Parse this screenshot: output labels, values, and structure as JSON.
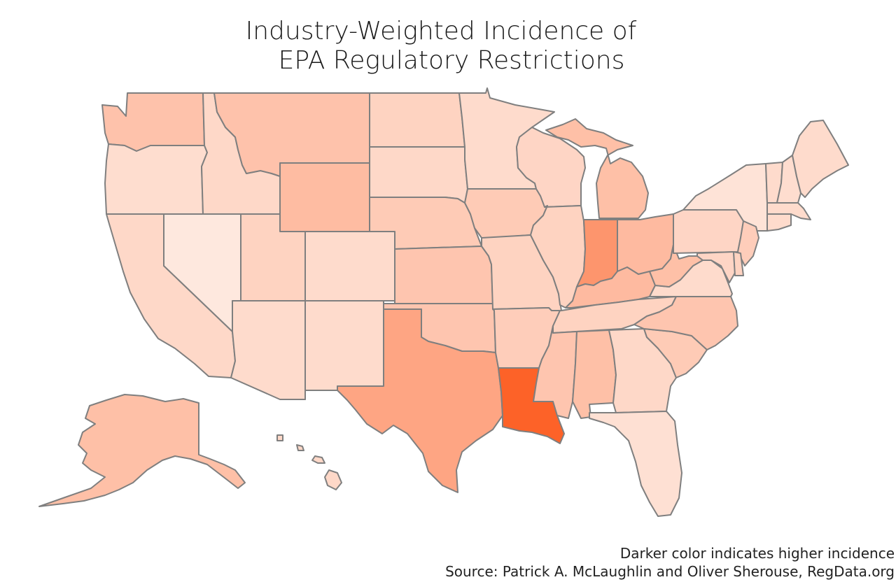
{
  "title": {
    "line1": "Industry-Weighted Incidence of",
    "line2": "EPA Regulatory Restrictions"
  },
  "footer": {
    "note": "Darker color indicates higher incidence",
    "source": "Source: Patrick A. McLaughlin and Oliver Sherouse, RegData.org"
  },
  "scale": {
    "low": "#fee8de",
    "high": "#fd6228"
  },
  "states": [
    {
      "id": "WA",
      "level": 0.28
    },
    {
      "id": "OR",
      "level": 0.08
    },
    {
      "id": "CA",
      "level": 0.12
    },
    {
      "id": "ID",
      "level": 0.12
    },
    {
      "id": "NV",
      "level": 0.0
    },
    {
      "id": "MT",
      "level": 0.28
    },
    {
      "id": "WY",
      "level": 0.33
    },
    {
      "id": "UT",
      "level": 0.16
    },
    {
      "id": "AZ",
      "level": 0.1
    },
    {
      "id": "CO",
      "level": 0.1
    },
    {
      "id": "NM",
      "level": 0.1
    },
    {
      "id": "ND",
      "level": 0.16
    },
    {
      "id": "SD",
      "level": 0.12
    },
    {
      "id": "NE",
      "level": 0.22
    },
    {
      "id": "KS",
      "level": 0.26
    },
    {
      "id": "OK",
      "level": 0.26
    },
    {
      "id": "TX",
      "level": 0.5
    },
    {
      "id": "MN",
      "level": 0.1
    },
    {
      "id": "IA",
      "level": 0.22
    },
    {
      "id": "MO",
      "level": 0.16
    },
    {
      "id": "AR",
      "level": 0.2
    },
    {
      "id": "LA",
      "level": 1.0
    },
    {
      "id": "WI",
      "level": 0.14
    },
    {
      "id": "IL",
      "level": 0.16
    },
    {
      "id": "MI",
      "level": 0.3
    },
    {
      "id": "IN",
      "level": 0.62
    },
    {
      "id": "OH",
      "level": 0.34
    },
    {
      "id": "KY",
      "level": 0.34
    },
    {
      "id": "TN",
      "level": 0.16
    },
    {
      "id": "MS",
      "level": 0.26
    },
    {
      "id": "AL",
      "level": 0.3
    },
    {
      "id": "GA",
      "level": 0.12
    },
    {
      "id": "FL",
      "level": 0.06
    },
    {
      "id": "SC",
      "level": 0.22
    },
    {
      "id": "NC",
      "level": 0.26
    },
    {
      "id": "VA",
      "level": 0.1
    },
    {
      "id": "WV",
      "level": 0.3
    },
    {
      "id": "PA",
      "level": 0.14
    },
    {
      "id": "NY",
      "level": 0.04
    },
    {
      "id": "VT",
      "level": 0.1
    },
    {
      "id": "NH",
      "level": 0.08
    },
    {
      "id": "ME",
      "level": 0.1
    },
    {
      "id": "MA",
      "level": 0.1
    },
    {
      "id": "CT",
      "level": 0.1
    },
    {
      "id": "NJ",
      "level": 0.2
    },
    {
      "id": "MD",
      "level": 0.14
    },
    {
      "id": "DE",
      "level": 0.16
    },
    {
      "id": "AK",
      "level": 0.3
    },
    {
      "id": "HI",
      "level": 0.12
    }
  ]
}
